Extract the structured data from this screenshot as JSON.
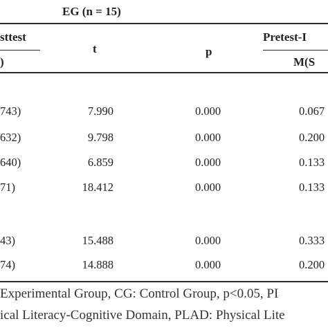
{
  "table": {
    "group_header": "EG (n = 15)",
    "col_posttest_header": "sttest",
    "col_posttest_sub": ")",
    "col_t": "t",
    "col_p": "p",
    "col_pretest_header": "Pretest-I",
    "col_pretest_sub": "M(S",
    "rows": [
      {
        "posttest": "743)",
        "t": "7.990",
        "p": "0.000",
        "pretest": "0.067"
      },
      {
        "posttest": "632)",
        "t": "9.798",
        "p": "0.000",
        "pretest": "0.200"
      },
      {
        "posttest": "640)",
        "t": "6.859",
        "p": "0.000",
        "pretest": "0.133"
      },
      {
        "posttest": "71)",
        "t": "18.412",
        "p": "0.000",
        "pretest": "0.133"
      },
      {
        "posttest": "43)",
        "t": "15.488",
        "p": "0.000",
        "pretest": "0.333"
      },
      {
        "posttest": "74)",
        "t": "14.888",
        "p": "0.000",
        "pretest": "0.200"
      }
    ]
  },
  "footnote": {
    "line1": "Experimental Group, CG: Control Group, p<0.05, PI",
    "line2": "ical Literacy-Cognitive Domain, PLAD: Physical Lite"
  }
}
